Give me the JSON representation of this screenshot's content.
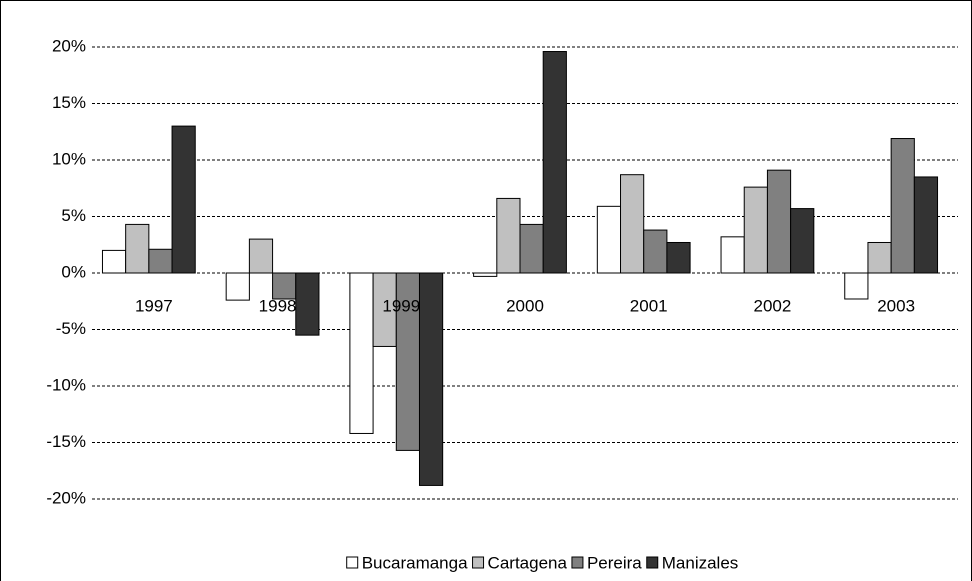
{
  "chart_data": {
    "type": "bar",
    "categories": [
      "1997",
      "1998",
      "1999",
      "2000",
      "2001",
      "2002",
      "2003"
    ],
    "series": [
      {
        "name": "Bucaramanga",
        "color": "#ffffff",
        "values": [
          2.0,
          -2.4,
          -14.2,
          -0.3,
          5.9,
          3.2,
          -2.3
        ]
      },
      {
        "name": "Cartagena",
        "color": "#c0c0c0",
        "values": [
          4.3,
          3.0,
          -6.5,
          6.6,
          8.7,
          7.6,
          2.7
        ]
      },
      {
        "name": "Pereira",
        "color": "#808080",
        "values": [
          2.1,
          -2.3,
          -15.7,
          4.3,
          3.8,
          9.1,
          11.9
        ]
      },
      {
        "name": "Manizales",
        "color": "#333333",
        "values": [
          13.0,
          -5.5,
          -18.8,
          19.6,
          2.7,
          5.7,
          8.5
        ]
      }
    ],
    "ylim": [
      -20,
      20
    ],
    "yticks": [
      {
        "value": -20,
        "label": "-20%"
      },
      {
        "value": -15,
        "label": "-15%"
      },
      {
        "value": -10,
        "label": "-10%"
      },
      {
        "value": -5,
        "label": "-5%"
      },
      {
        "value": 0,
        "label": "0%"
      },
      {
        "value": 5,
        "label": "5%"
      },
      {
        "value": 10,
        "label": "10%"
      },
      {
        "value": 15,
        "label": "15%"
      },
      {
        "value": 20,
        "label": "20%"
      }
    ],
    "grid": true,
    "legend": "bottom"
  }
}
